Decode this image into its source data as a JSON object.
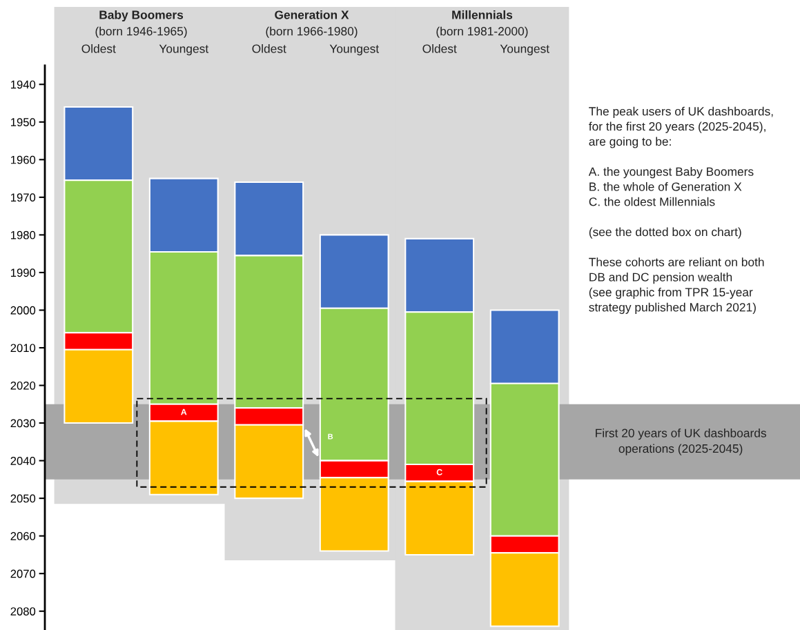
{
  "chart_data": {
    "type": "bar",
    "categories": [
      "Oldest",
      "Youngest",
      "Oldest",
      "Youngest",
      "Oldest",
      "Youngest"
    ],
    "series": [
      {
        "color": "#4472c4",
        "base": [
          1946,
          1965,
          1966,
          1980,
          1981,
          2000
        ],
        "values": [
          19.5,
          19.5,
          19.5,
          19.5,
          19.5,
          19.5
        ]
      },
      {
        "color": "#92d050",
        "base": [
          1965.5,
          1984.5,
          1985.5,
          1999.5,
          2000.5,
          2019.5
        ],
        "values": [
          40.5,
          40.5,
          40.5,
          40.5,
          40.5,
          40.5
        ]
      },
      {
        "color": "#ff0000",
        "base": [
          2006,
          2025,
          2026,
          2040,
          2041,
          2060
        ],
        "values": [
          4.5,
          4.5,
          4.5,
          4.5,
          4.5,
          4.5
        ],
        "value_labels": [
          null,
          "A",
          null,
          null,
          "C",
          null
        ]
      },
      {
        "color": "#ffc000",
        "base": [
          2010.5,
          2029.5,
          2030.5,
          2044.5,
          2045.5,
          2064.5
        ],
        "values": [
          19.5,
          19.5,
          19.5,
          19.5,
          19.5,
          19.5
        ]
      }
    ],
    "ylim": [
      2085,
      1935
    ],
    "yticks": [
      1940,
      1950,
      1960,
      1970,
      1980,
      1990,
      2000,
      2010,
      2020,
      2030,
      2040,
      2050,
      2060,
      2070,
      2080
    ],
    "bands": [
      {
        "axis": "y",
        "from": 2025,
        "to": 2045,
        "label": "First 20 years of UK dashboards\noperations (2025-2045)",
        "color": "#a6a6a6"
      }
    ],
    "annotations": [
      "Baby Boomers",
      "(born 1946-1965)",
      "Generation X",
      "(born 1966-1980)",
      "Millennials",
      "(born 1981-2000)",
      "B",
      "The peak users of UK dashboards,\nfor the first 20 years (2025-2045),\nare going to be:",
      "A. the youngest Baby Boomers\nB. the whole of Generation X\nC. the oldest Millennials",
      "(see the dotted box on chart)",
      "These cohorts are reliant on both\nDB and DC pension wealth\n(see graphic from TPR 15-year\nstrategy published March 2021)"
    ],
    "grid": false
  }
}
